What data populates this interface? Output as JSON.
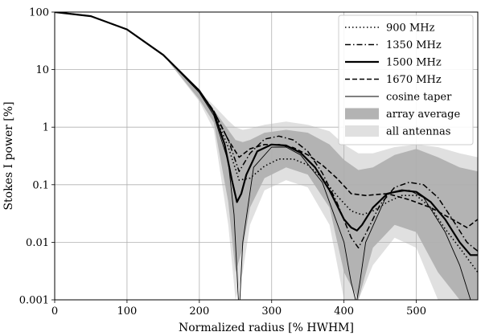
{
  "chart_data": {
    "type": "line",
    "xlabel": "Normalized radius [% HWHM]",
    "ylabel": "Stokes I power [%]",
    "xlim": [
      0,
      585
    ],
    "ylim": [
      0.001,
      100
    ],
    "yscale": "log",
    "grid": true,
    "legend_placement": "top-right",
    "x_ticks": [
      0,
      100,
      200,
      300,
      400,
      500
    ],
    "x_tick_labels": [
      "0",
      "100",
      "200",
      "300",
      "400",
      "500"
    ],
    "y_ticks": [
      100,
      10,
      1,
      0.1,
      0.01,
      0.001
    ],
    "y_tick_labels": [
      "100",
      "10",
      "1",
      "0.1",
      "0.01",
      "0.001"
    ],
    "bands": [
      {
        "name": "all antennas",
        "color": "#e0e0e0",
        "x": [
          0,
          100,
          150,
          200,
          220,
          240,
          250,
          260,
          270,
          290,
          320,
          350,
          380,
          400,
          420,
          440,
          470,
          500,
          530,
          560,
          585
        ],
        "upper": [
          100,
          50,
          18,
          4.2,
          2.4,
          1.3,
          1.0,
          0.9,
          0.95,
          1.1,
          1.25,
          1.1,
          0.85,
          0.5,
          0.35,
          0.35,
          0.45,
          0.5,
          0.45,
          0.35,
          0.3
        ],
        "lower": [
          100,
          50,
          18,
          2.8,
          0.9,
          0.02,
          0.001,
          0.003,
          0.02,
          0.08,
          0.12,
          0.09,
          0.02,
          0.001,
          0.001,
          0.004,
          0.012,
          0.008,
          0.001,
          0.001,
          0.001
        ]
      },
      {
        "name": "array average",
        "color": "#b3b3b3",
        "x": [
          0,
          100,
          150,
          200,
          220,
          240,
          250,
          260,
          270,
          290,
          320,
          350,
          380,
          400,
          420,
          440,
          470,
          500,
          530,
          560,
          585
        ],
        "upper": [
          100,
          50,
          18,
          4.0,
          2.0,
          0.9,
          0.6,
          0.55,
          0.6,
          0.8,
          0.9,
          0.8,
          0.5,
          0.27,
          0.18,
          0.2,
          0.33,
          0.42,
          0.3,
          0.2,
          0.17
        ],
        "lower": [
          100,
          50,
          18,
          3.0,
          1.2,
          0.05,
          0.003,
          0.008,
          0.04,
          0.13,
          0.2,
          0.15,
          0.04,
          0.003,
          0.001,
          0.008,
          0.02,
          0.015,
          0.003,
          0.001,
          0.001
        ]
      }
    ],
    "series": [
      {
        "name": "900 MHz",
        "style": "dotted",
        "x": [
          0,
          50,
          100,
          150,
          200,
          220,
          240,
          255,
          270,
          290,
          310,
          330,
          350,
          370,
          390,
          410,
          425,
          440,
          460,
          480,
          500,
          520,
          540,
          560,
          585
        ],
        "y": [
          100,
          85,
          50,
          18,
          4.3,
          1.8,
          0.45,
          0.12,
          0.13,
          0.21,
          0.28,
          0.28,
          0.22,
          0.13,
          0.065,
          0.035,
          0.03,
          0.035,
          0.05,
          0.065,
          0.065,
          0.04,
          0.017,
          0.008,
          0.003
        ]
      },
      {
        "name": "1350 MHz",
        "style": "dashdot",
        "x": [
          0,
          50,
          100,
          150,
          200,
          220,
          240,
          255,
          270,
          290,
          310,
          330,
          350,
          370,
          390,
          410,
          420,
          430,
          450,
          470,
          490,
          510,
          530,
          550,
          570,
          585
        ],
        "y": [
          100,
          85,
          50,
          18,
          4.3,
          1.9,
          0.6,
          0.17,
          0.35,
          0.62,
          0.7,
          0.6,
          0.38,
          0.16,
          0.05,
          0.012,
          0.008,
          0.014,
          0.045,
          0.09,
          0.11,
          0.1,
          0.06,
          0.025,
          0.01,
          0.007
        ]
      },
      {
        "name": "1500 MHz",
        "style": "solid-thick",
        "x": [
          0,
          50,
          100,
          150,
          200,
          220,
          235,
          245,
          252,
          258,
          265,
          280,
          300,
          320,
          340,
          360,
          380,
          400,
          410,
          418,
          425,
          440,
          460,
          480,
          500,
          520,
          540,
          560,
          575,
          585
        ],
        "y": [
          100,
          85,
          50,
          18,
          4.3,
          1.8,
          0.5,
          0.12,
          0.05,
          0.07,
          0.15,
          0.38,
          0.5,
          0.48,
          0.36,
          0.2,
          0.08,
          0.025,
          0.018,
          0.016,
          0.02,
          0.04,
          0.07,
          0.08,
          0.075,
          0.05,
          0.025,
          0.01,
          0.006,
          0.006
        ]
      },
      {
        "name": "1670 MHz",
        "style": "dashed",
        "x": [
          0,
          50,
          100,
          150,
          200,
          220,
          240,
          255,
          270,
          290,
          310,
          330,
          350,
          370,
          390,
          410,
          430,
          460,
          490,
          520,
          550,
          570,
          585
        ],
        "y": [
          100,
          85,
          50,
          18,
          4.3,
          1.9,
          0.6,
          0.3,
          0.42,
          0.5,
          0.5,
          0.44,
          0.33,
          0.22,
          0.13,
          0.07,
          0.065,
          0.07,
          0.055,
          0.04,
          0.025,
          0.018,
          0.025
        ]
      },
      {
        "name": "cosine taper",
        "style": "solid-thin",
        "x": [
          0,
          50,
          100,
          150,
          200,
          220,
          240,
          248,
          254,
          256,
          260,
          275,
          300,
          320,
          340,
          370,
          400,
          410,
          416,
          418,
          422,
          430,
          460,
          490,
          510,
          540,
          560,
          575,
          585
        ],
        "y": [
          100,
          85,
          50,
          18,
          4.0,
          1.6,
          0.25,
          0.03,
          0.001,
          0.001,
          0.01,
          0.2,
          0.45,
          0.45,
          0.33,
          0.11,
          0.01,
          0.002,
          0.001,
          0.001,
          0.002,
          0.01,
          0.07,
          0.08,
          0.06,
          0.015,
          0.004,
          0.001,
          0.001
        ]
      }
    ]
  }
}
